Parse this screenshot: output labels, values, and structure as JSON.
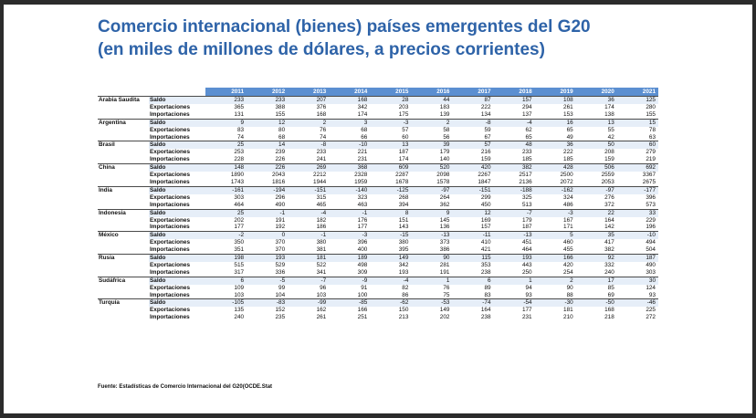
{
  "title": {
    "line1": "Comercio internacional (bienes) países emergentes del G20",
    "line2": "(en miles de millones de dólares, a precios corrientes)"
  },
  "years": [
    "2011",
    "2012",
    "2013",
    "2014",
    "2015",
    "2016",
    "2017",
    "2018",
    "2019",
    "2020",
    "2021"
  ],
  "metric_labels": [
    "Saldo",
    "Exportaciones",
    "Importaciones"
  ],
  "countries": [
    {
      "name": "Arabia Saudita",
      "rows": [
        [
          "233",
          "233",
          "207",
          "168",
          "28",
          "44",
          "87",
          "157",
          "108",
          "36",
          "125"
        ],
        [
          "365",
          "388",
          "376",
          "342",
          "203",
          "183",
          "222",
          "294",
          "261",
          "174",
          "280"
        ],
        [
          "131",
          "155",
          "168",
          "174",
          "175",
          "139",
          "134",
          "137",
          "153",
          "138",
          "155"
        ]
      ]
    },
    {
      "name": "Argentina",
      "rows": [
        [
          "9",
          "12",
          "2",
          "3",
          "-3",
          "2",
          "-8",
          "-4",
          "16",
          "13",
          "15"
        ],
        [
          "83",
          "80",
          "76",
          "68",
          "57",
          "58",
          "59",
          "62",
          "65",
          "55",
          "78"
        ],
        [
          "74",
          "68",
          "74",
          "66",
          "60",
          "56",
          "67",
          "65",
          "49",
          "42",
          "63"
        ]
      ]
    },
    {
      "name": "Brasil",
      "rows": [
        [
          "25",
          "14",
          "-8",
          "-10",
          "13",
          "39",
          "57",
          "48",
          "36",
          "50",
          "60"
        ],
        [
          "253",
          "239",
          "233",
          "221",
          "187",
          "179",
          "216",
          "233",
          "222",
          "208",
          "279"
        ],
        [
          "228",
          "226",
          "241",
          "231",
          "174",
          "140",
          "159",
          "185",
          "185",
          "159",
          "219"
        ]
      ]
    },
    {
      "name": "China",
      "rows": [
        [
          "148",
          "226",
          "269",
          "368",
          "609",
          "520",
          "420",
          "382",
          "428",
          "506",
          "692"
        ],
        [
          "1890",
          "2043",
          "2212",
          "2328",
          "2287",
          "2098",
          "2267",
          "2517",
          "2500",
          "2559",
          "3367"
        ],
        [
          "1743",
          "1816",
          "1944",
          "1959",
          "1678",
          "1578",
          "1847",
          "2136",
          "2072",
          "2053",
          "2675"
        ]
      ]
    },
    {
      "name": "India",
      "rows": [
        [
          "-161",
          "-194",
          "-151",
          "-140",
          "-125",
          "-97",
          "-151",
          "-188",
          "-162",
          "-97",
          "-177"
        ],
        [
          "303",
          "296",
          "315",
          "323",
          "268",
          "264",
          "299",
          "325",
          "324",
          "276",
          "396"
        ],
        [
          "464",
          "490",
          "465",
          "463",
          "394",
          "362",
          "450",
          "513",
          "486",
          "372",
          "573"
        ]
      ]
    },
    {
      "name": "Indonesia",
      "rows": [
        [
          "25",
          "-1",
          "-4",
          "-1",
          "8",
          "9",
          "12",
          "-7",
          "-3",
          "22",
          "33"
        ],
        [
          "202",
          "191",
          "182",
          "176",
          "151",
          "145",
          "169",
          "179",
          "167",
          "164",
          "229"
        ],
        [
          "177",
          "192",
          "186",
          "177",
          "143",
          "136",
          "157",
          "187",
          "171",
          "142",
          "196"
        ]
      ]
    },
    {
      "name": "México",
      "rows": [
        [
          "-2",
          "0",
          "-1",
          "-3",
          "-15",
          "-13",
          "-11",
          "-13",
          "5",
          "35",
          "-10"
        ],
        [
          "350",
          "370",
          "380",
          "396",
          "380",
          "373",
          "410",
          "451",
          "460",
          "417",
          "494"
        ],
        [
          "351",
          "370",
          "381",
          "400",
          "395",
          "386",
          "421",
          "464",
          "455",
          "382",
          "504"
        ]
      ]
    },
    {
      "name": "Rusia",
      "rows": [
        [
          "198",
          "193",
          "181",
          "189",
          "149",
          "90",
          "115",
          "193",
          "166",
          "92",
          "187"
        ],
        [
          "515",
          "529",
          "522",
          "498",
          "342",
          "281",
          "353",
          "443",
          "420",
          "332",
          "490"
        ],
        [
          "317",
          "336",
          "341",
          "309",
          "193",
          "191",
          "238",
          "250",
          "254",
          "240",
          "303"
        ]
      ]
    },
    {
      "name": "Sudáfrica",
      "rows": [
        [
          "6",
          "-5",
          "-7",
          "-9",
          "-4",
          "1",
          "6",
          "1",
          "2",
          "17",
          "30"
        ],
        [
          "109",
          "99",
          "96",
          "91",
          "82",
          "76",
          "89",
          "94",
          "90",
          "85",
          "124"
        ],
        [
          "103",
          "104",
          "103",
          "100",
          "86",
          "75",
          "83",
          "93",
          "88",
          "69",
          "93"
        ]
      ]
    },
    {
      "name": "Turquía",
      "rows": [
        [
          "-105",
          "-83",
          "-99",
          "-85",
          "-62",
          "-53",
          "-74",
          "-54",
          "-30",
          "-50",
          "-46"
        ],
        [
          "135",
          "152",
          "162",
          "166",
          "150",
          "149",
          "164",
          "177",
          "181",
          "168",
          "225"
        ],
        [
          "240",
          "235",
          "261",
          "251",
          "213",
          "202",
          "238",
          "231",
          "210",
          "218",
          "272"
        ]
      ]
    }
  ],
  "source": "Fuente: Estadísticas de Comercio Internacional del G20(OCDE.Stat"
}
